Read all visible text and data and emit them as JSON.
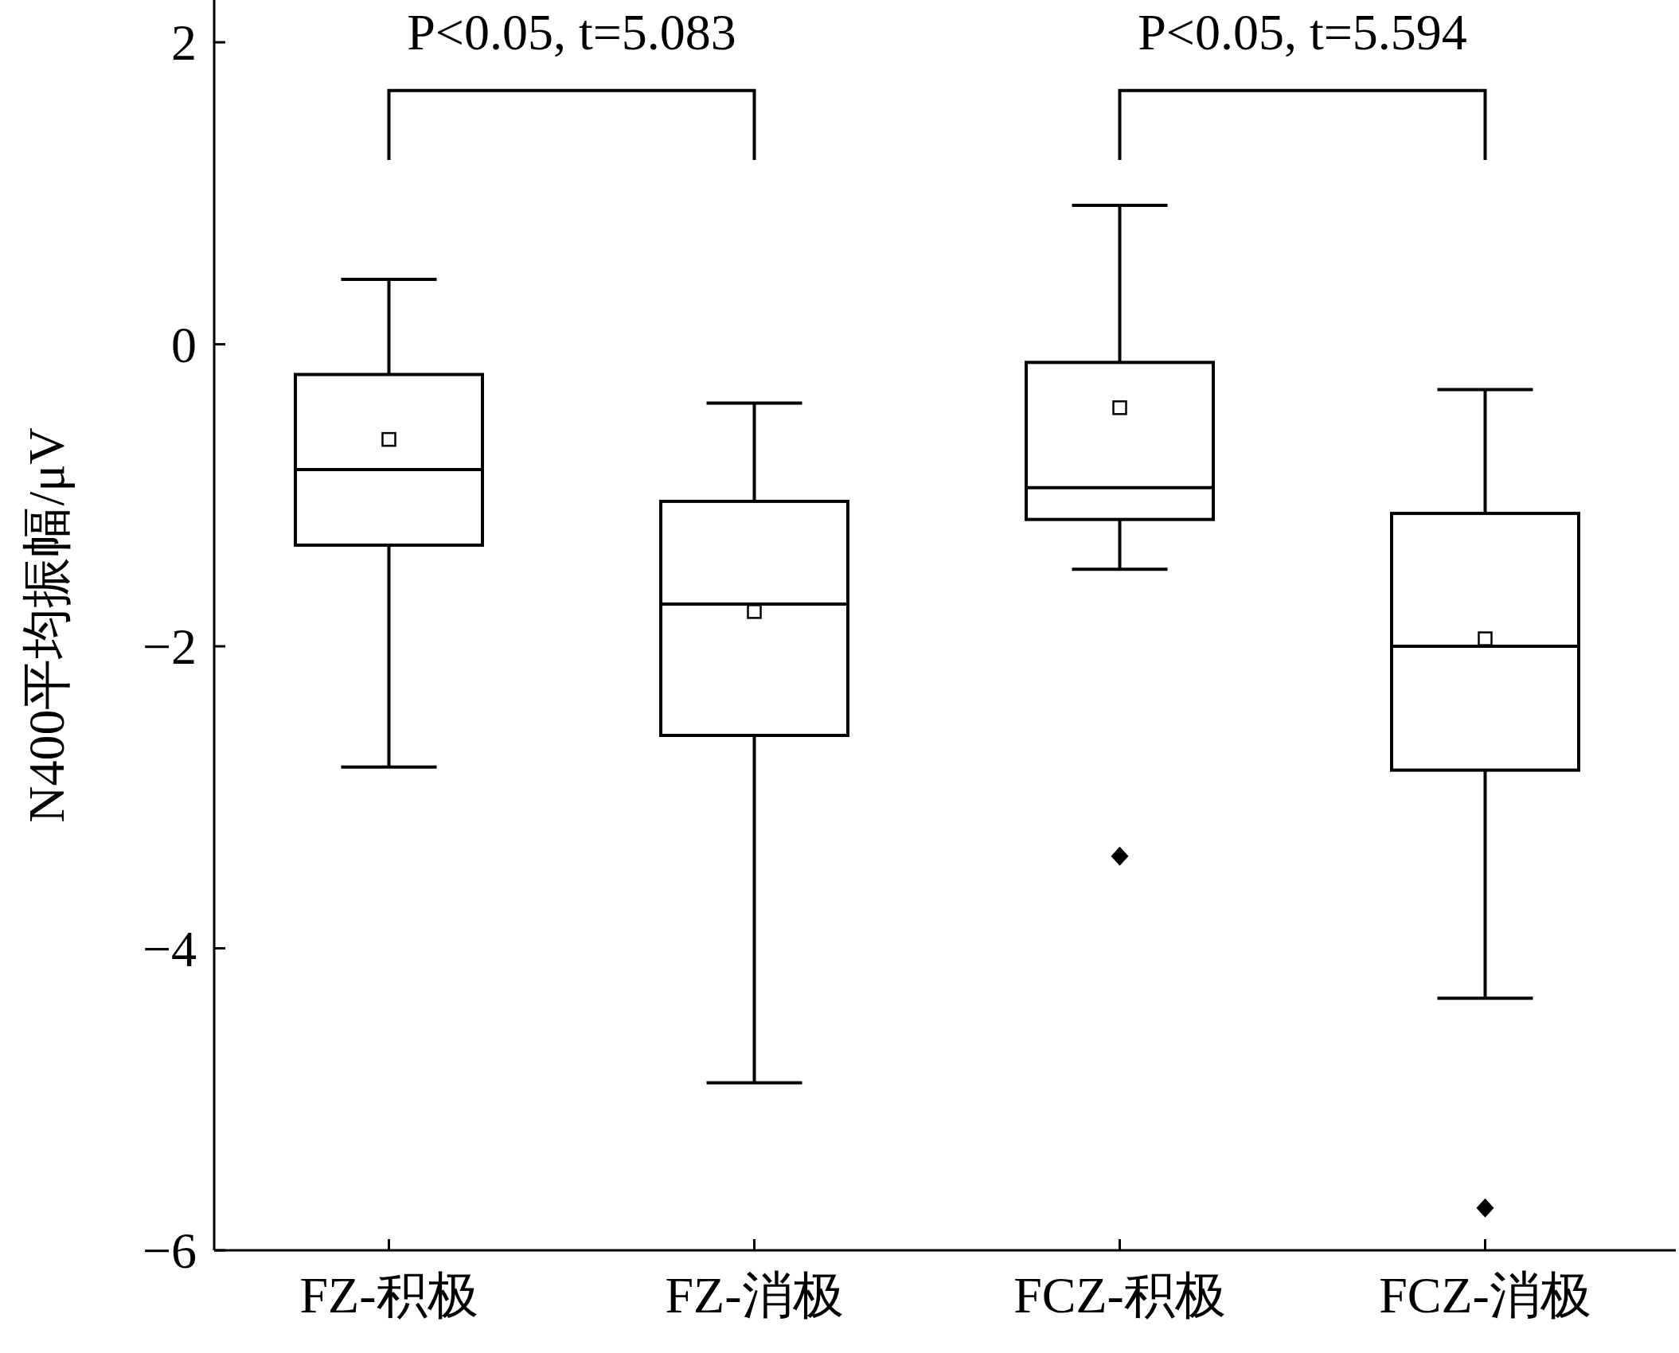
{
  "chart_data": {
    "type": "box",
    "ylabel": "N400平均振幅/μV",
    "categories": [
      "FZ-积极",
      "FZ-消极",
      "FCZ-积极",
      "FCZ-消极"
    ],
    "boxes": [
      {
        "low": -2.8,
        "q1": -1.33,
        "median": -0.83,
        "q3": -0.2,
        "high": 0.43,
        "mean": -0.63
      },
      {
        "low": -4.89,
        "q1": -2.59,
        "median": -1.72,
        "q3": -1.04,
        "high": -0.39,
        "mean": -1.77
      },
      {
        "low": -1.49,
        "q1": -1.16,
        "median": -0.95,
        "q3": -0.12,
        "high": 0.92,
        "mean": -0.42,
        "outliers": [
          -3.39
        ]
      },
      {
        "low": -4.33,
        "q1": -2.82,
        "median": -2.0,
        "q3": -1.12,
        "high": -0.3,
        "mean": -1.95,
        "outliers": [
          -5.72
        ]
      }
    ],
    "ylim": [
      -6,
      2.28
    ],
    "yticks": [
      2,
      0,
      {
        "value": -2,
        "label": "−2"
      },
      {
        "value": -4,
        "label": "−4"
      },
      {
        "value": -6,
        "label": "−6"
      }
    ],
    "grid": false,
    "annotations": [
      "P<0.05, t=5.083",
      "P<0.05, t=5.594"
    ]
  }
}
